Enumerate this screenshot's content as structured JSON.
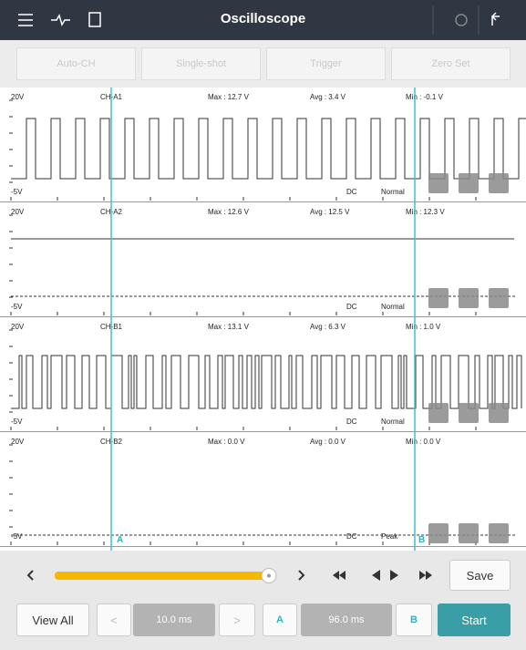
{
  "header": {
    "title": "Oscilloscope"
  },
  "toolbar": [
    "Auto-CH",
    "Single-shot",
    "Trigger",
    "Zero Set"
  ],
  "channels": [
    {
      "top": "20V",
      "name": "CH-A1",
      "max": "Max : 12.7 V",
      "avg": "Avg : 3.4 V",
      "min": "Min : -0.1 V",
      "bottom": "-5V",
      "coupling": "DC",
      "mode": "Normal"
    },
    {
      "top": "20V",
      "name": "CH-A2",
      "max": "Max : 12.6 V",
      "avg": "Avg : 12.5 V",
      "min": "Min : 12.3 V",
      "bottom": "-5V",
      "coupling": "DC",
      "mode": "Normal"
    },
    {
      "top": "20V",
      "name": "CH-B1",
      "max": "Max : 13.1 V",
      "avg": "Avg : 6.3 V",
      "min": "Min : 1.0 V",
      "bottom": "-5V",
      "coupling": "DC",
      "mode": "Normal"
    },
    {
      "top": "20V",
      "name": "CH-B2",
      "max": "Max : 0.0 V",
      "avg": "Avg : 0.0 V",
      "min": "Min : 0.0 V",
      "bottom": "-5V",
      "coupling": "DC",
      "mode": "Peak"
    }
  ],
  "cursors": {
    "a": "A",
    "b": "B"
  },
  "controls": {
    "save": "Save",
    "view_all": "View All",
    "time_base": "10.0 ms",
    "cursor_a": "A",
    "cursor_delta": "96.0 ms",
    "cursor_b": "B",
    "start": "Start"
  }
}
